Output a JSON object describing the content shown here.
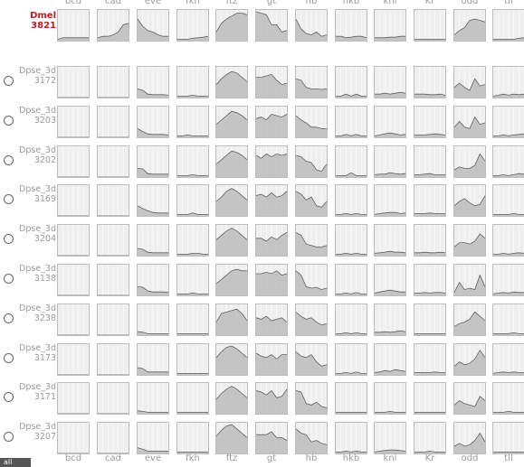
{
  "gene_labels": [
    "bcd",
    "cad",
    "eve",
    "fkh",
    "ftz",
    "gt",
    "hb",
    "hkb",
    "kni",
    "Kr",
    "odd",
    "tll"
  ],
  "reference": {
    "name_line1": "Dmel",
    "name_line2": "3821",
    "profiles": [
      [
        0.05,
        0.1,
        0.1,
        0.1,
        0.1,
        0.1,
        0.1
      ],
      [
        0.1,
        0.15,
        0.15,
        0.2,
        0.3,
        0.55,
        0.6
      ],
      [
        0.75,
        0.5,
        0.35,
        0.3,
        0.2,
        0.15,
        0.15
      ],
      [
        0.05,
        0.05,
        0.05,
        0.08,
        0.1,
        0.12,
        0.15
      ],
      [
        0.3,
        0.6,
        0.75,
        0.85,
        0.95,
        0.95,
        0.9
      ],
      [
        1.0,
        0.95,
        0.9,
        0.55,
        0.55,
        0.3,
        0.35
      ],
      [
        0.75,
        0.4,
        0.25,
        0.2,
        0.3,
        0.15,
        0.2
      ],
      [
        0.15,
        0.15,
        0.1,
        0.12,
        0.15,
        0.15,
        0.1
      ],
      [
        0.1,
        0.1,
        0.1,
        0.12,
        0.12,
        0.15,
        0.15
      ],
      [
        0.05,
        0.05,
        0.05,
        0.05,
        0.05,
        0.05,
        0.05
      ],
      [
        0.2,
        0.35,
        0.45,
        0.7,
        0.75,
        0.7,
        0.65
      ],
      [
        0.05,
        0.05,
        0.05,
        0.05,
        0.05,
        0.08,
        0.1
      ]
    ]
  },
  "rows": [
    {
      "name_line1": "Dpse_3d",
      "name_line2": "3172",
      "profiles": [
        [
          0,
          0,
          0,
          0,
          0,
          0,
          0
        ],
        [
          0,
          0,
          0,
          0,
          0,
          0,
          0
        ],
        [
          0.3,
          0.25,
          0.12,
          0.1,
          0.1,
          0.1,
          0.08
        ],
        [
          0.05,
          0.05,
          0.05,
          0.08,
          0.05,
          0.05,
          0.05
        ],
        [
          0.45,
          0.65,
          0.8,
          0.9,
          0.85,
          0.7,
          0.55
        ],
        [
          0.7,
          0.7,
          0.75,
          0.8,
          0.6,
          0.45,
          0.5
        ],
        [
          0.65,
          0.6,
          0.35,
          0.3,
          0.3,
          0.28,
          0.3
        ],
        [
          0.05,
          0.05,
          0.12,
          0.05,
          0.12,
          0.05,
          0.05
        ],
        [
          0.12,
          0.12,
          0.15,
          0.12,
          0.15,
          0.18,
          0.15
        ],
        [
          0.12,
          0.12,
          0.12,
          0.1,
          0.1,
          0.12,
          0.08
        ],
        [
          0.35,
          0.5,
          0.35,
          0.25,
          0.65,
          0.4,
          0.45
        ],
        [
          0.05,
          0.08,
          0.12,
          0.08,
          0.12,
          0.1,
          0.12
        ]
      ]
    },
    {
      "name_line1": "Dpse_3d",
      "name_line2": "3203",
      "profiles": [
        [
          0,
          0,
          0,
          0,
          0,
          0,
          0
        ],
        [
          0,
          0,
          0,
          0,
          0,
          0,
          0
        ],
        [
          0.3,
          0.2,
          0.12,
          0.1,
          0.1,
          0.1,
          0.08
        ],
        [
          0.05,
          0.05,
          0.08,
          0.05,
          0.05,
          0.05,
          0.05
        ],
        [
          0.45,
          0.6,
          0.75,
          0.9,
          0.85,
          0.75,
          0.6
        ],
        [
          0.65,
          0.7,
          0.6,
          0.8,
          0.75,
          0.7,
          0.8
        ],
        [
          0.75,
          0.6,
          0.5,
          0.35,
          0.35,
          0.3,
          0.3
        ],
        [
          0.05,
          0.05,
          0.1,
          0.05,
          0.1,
          0.05,
          0.05
        ],
        [
          0.05,
          0.08,
          0.12,
          0.15,
          0.12,
          0.08,
          0.1
        ],
        [
          0.08,
          0.08,
          0.08,
          0.1,
          0.12,
          0.1,
          0.08
        ],
        [
          0.35,
          0.55,
          0.35,
          0.3,
          0.7,
          0.45,
          0.5
        ],
        [
          0.05,
          0.05,
          0.08,
          0.05,
          0.08,
          0.1,
          0.12
        ]
      ]
    },
    {
      "name_line1": "Dpse_3d",
      "name_line2": "3202",
      "profiles": [
        [
          0,
          0,
          0,
          0,
          0,
          0,
          0
        ],
        [
          0,
          0,
          0,
          0,
          0,
          0,
          0
        ],
        [
          0.3,
          0.28,
          0.12,
          0.1,
          0.1,
          0.1,
          0.1
        ],
        [
          0.05,
          0.05,
          0.05,
          0.08,
          0.05,
          0.05,
          0.05
        ],
        [
          0.45,
          0.6,
          0.75,
          0.9,
          0.85,
          0.75,
          0.6
        ],
        [
          0.75,
          0.65,
          0.8,
          0.7,
          0.8,
          0.75,
          0.8
        ],
        [
          0.75,
          0.7,
          0.55,
          0.5,
          0.25,
          0.2,
          0.45
        ],
        [
          0.05,
          0.05,
          0.05,
          0.15,
          0.05,
          0.05,
          0.05
        ],
        [
          0.08,
          0.1,
          0.1,
          0.15,
          0.12,
          0.1,
          0.12
        ],
        [
          0.08,
          0.08,
          0.1,
          0.12,
          0.08,
          0.08,
          0.08
        ],
        [
          0.25,
          0.35,
          0.3,
          0.3,
          0.4,
          0.8,
          0.55
        ],
        [
          0.05,
          0.05,
          0.08,
          0.05,
          0.08,
          0.12,
          0.1
        ]
      ]
    },
    {
      "name_line1": "Dpse_3d",
      "name_line2": "3169",
      "profiles": [
        [
          0,
          0,
          0,
          0,
          0,
          0,
          0
        ],
        [
          0,
          0,
          0,
          0,
          0,
          0,
          0
        ],
        [
          0.35,
          0.25,
          0.18,
          0.12,
          0.1,
          0.1,
          0.1
        ],
        [
          0.05,
          0.05,
          0.05,
          0.1,
          0.05,
          0.05,
          0.05
        ],
        [
          0.5,
          0.65,
          0.85,
          0.95,
          0.85,
          0.7,
          0.55
        ],
        [
          0.7,
          0.75,
          0.65,
          0.8,
          0.65,
          0.7,
          0.85
        ],
        [
          0.85,
          0.75,
          0.55,
          0.65,
          0.35,
          0.3,
          0.5
        ],
        [
          0.05,
          0.05,
          0.08,
          0.05,
          0.08,
          0.05,
          0.05
        ],
        [
          0.05,
          0.08,
          0.1,
          0.12,
          0.12,
          0.08,
          0.1
        ],
        [
          0.08,
          0.08,
          0.08,
          0.1,
          0.08,
          0.08,
          0.08
        ],
        [
          0.35,
          0.5,
          0.6,
          0.45,
          0.35,
          0.4,
          0.7
        ],
        [
          0.05,
          0.05,
          0.05,
          0.05,
          0.08,
          0.05,
          0.05
        ]
      ]
    },
    {
      "name_line1": "Dpse_3d",
      "name_line2": "3204",
      "profiles": [
        [
          0,
          0,
          0,
          0,
          0,
          0,
          0
        ],
        [
          0,
          0,
          0,
          0,
          0,
          0,
          0
        ],
        [
          0.25,
          0.22,
          0.12,
          0.1,
          0.1,
          0.1,
          0.1
        ],
        [
          0.05,
          0.05,
          0.05,
          0.08,
          0.08,
          0.05,
          0.05
        ],
        [
          0.55,
          0.7,
          0.85,
          0.95,
          0.85,
          0.7,
          0.55
        ],
        [
          0.6,
          0.6,
          0.5,
          0.65,
          0.55,
          0.7,
          0.8
        ],
        [
          0.8,
          0.7,
          0.4,
          0.35,
          0.3,
          0.3,
          0.35
        ],
        [
          0.05,
          0.05,
          0.08,
          0.05,
          0.08,
          0.05,
          0.05
        ],
        [
          0.08,
          0.1,
          0.12,
          0.15,
          0.12,
          0.12,
          0.1
        ],
        [
          0.1,
          0.1,
          0.12,
          0.1,
          0.1,
          0.12,
          0.1
        ],
        [
          0.3,
          0.45,
          0.45,
          0.4,
          0.5,
          0.75,
          0.6
        ],
        [
          0.05,
          0.05,
          0.08,
          0.05,
          0.08,
          0.1,
          0.08
        ]
      ]
    },
    {
      "name_line1": "Dpse_3d",
      "name_line2": "3138",
      "profiles": [
        [
          0,
          0,
          0,
          0,
          0,
          0,
          0
        ],
        [
          0,
          0,
          0,
          0,
          0,
          0,
          0
        ],
        [
          0.3,
          0.28,
          0.15,
          0.12,
          0.12,
          0.12,
          0.1
        ],
        [
          0.05,
          0.05,
          0.05,
          0.08,
          0.05,
          0.05,
          0.05
        ],
        [
          0.4,
          0.55,
          0.7,
          0.85,
          0.9,
          0.85,
          0.85
        ],
        [
          0.75,
          0.75,
          0.8,
          0.75,
          0.85,
          0.7,
          0.75
        ],
        [
          0.85,
          0.7,
          0.3,
          0.25,
          0.28,
          0.2,
          0.25
        ],
        [
          0.05,
          0.05,
          0.08,
          0.05,
          0.1,
          0.05,
          0.05
        ],
        [
          0.08,
          0.12,
          0.15,
          0.18,
          0.15,
          0.12,
          0.12
        ],
        [
          0.08,
          0.08,
          0.1,
          0.08,
          0.1,
          0.1,
          0.08
        ],
        [
          0.1,
          0.45,
          0.2,
          0.25,
          0.2,
          0.7,
          0.3
        ],
        [
          0.05,
          0.08,
          0.1,
          0.08,
          0.12,
          0.1,
          0.1
        ]
      ]
    },
    {
      "name_line1": "Dpse_3d",
      "name_line2": "3238",
      "profiles": [
        [
          0,
          0,
          0,
          0,
          0,
          0,
          0
        ],
        [
          0,
          0,
          0,
          0,
          0,
          0,
          0
        ],
        [
          0.12,
          0.1,
          0.05,
          0.05,
          0.05,
          0.05,
          0.05
        ],
        [
          0.05,
          0.05,
          0.05,
          0.05,
          0.05,
          0.05,
          0.05
        ],
        [
          0.45,
          0.75,
          0.8,
          0.85,
          0.9,
          0.75,
          0.5
        ],
        [
          0.6,
          0.55,
          0.65,
          0.5,
          0.55,
          0.6,
          0.45
        ],
        [
          0.8,
          0.65,
          0.55,
          0.6,
          0.45,
          0.35,
          0.4
        ],
        [
          0.05,
          0.05,
          0.08,
          0.05,
          0.08,
          0.05,
          0.05
        ],
        [
          0.1,
          0.1,
          0.12,
          0.1,
          0.12,
          0.15,
          0.12
        ],
        [
          0.05,
          0.05,
          0.05,
          0.05,
          0.05,
          0.05,
          0.05
        ],
        [
          0.3,
          0.4,
          0.45,
          0.55,
          0.8,
          0.65,
          0.5
        ],
        [
          0.05,
          0.05,
          0.05,
          0.05,
          0.08,
          0.05,
          0.05
        ]
      ]
    },
    {
      "name_line1": "Dpse_3d",
      "name_line2": "3173",
      "profiles": [
        [
          0,
          0,
          0,
          0,
          0,
          0,
          0
        ],
        [
          0,
          0,
          0,
          0,
          0,
          0,
          0
        ],
        [
          0.25,
          0.22,
          0.1,
          0.1,
          0.1,
          0.1,
          0.1
        ],
        [
          0.05,
          0.05,
          0.05,
          0.05,
          0.05,
          0.05,
          0.05
        ],
        [
          0.6,
          0.8,
          0.95,
          1.0,
          0.9,
          0.75,
          0.6
        ],
        [
          0.75,
          0.65,
          0.6,
          0.7,
          0.55,
          0.7,
          0.7
        ],
        [
          0.8,
          0.65,
          0.6,
          0.7,
          0.45,
          0.3,
          0.35
        ],
        [
          0.05,
          0.05,
          0.08,
          0.05,
          0.1,
          0.05,
          0.05
        ],
        [
          0.08,
          0.1,
          0.15,
          0.12,
          0.18,
          0.15,
          0.12
        ],
        [
          0.08,
          0.08,
          0.08,
          0.08,
          0.1,
          0.08,
          0.08
        ],
        [
          0.3,
          0.45,
          0.35,
          0.4,
          0.55,
          0.85,
          0.6
        ],
        [
          0.05,
          0.08,
          0.1,
          0.08,
          0.1,
          0.08,
          0.08
        ]
      ]
    },
    {
      "name_line1": "Dpse_3d",
      "name_line2": "3171",
      "profiles": [
        [
          0,
          0,
          0,
          0,
          0,
          0,
          0
        ],
        [
          0,
          0,
          0,
          0,
          0,
          0,
          0
        ],
        [
          0.1,
          0.08,
          0.05,
          0.05,
          0.05,
          0.05,
          0.05
        ],
        [
          0.05,
          0.05,
          0.05,
          0.05,
          0.05,
          0.05,
          0.05
        ],
        [
          0.5,
          0.7,
          0.85,
          0.95,
          0.85,
          0.7,
          0.55
        ],
        [
          0.8,
          0.75,
          0.65,
          0.8,
          0.55,
          0.6,
          0.85
        ],
        [
          0.8,
          0.75,
          0.35,
          0.3,
          0.4,
          0.25,
          0.2
        ],
        [
          0.05,
          0.05,
          0.05,
          0.05,
          0.05,
          0.05,
          0.05
        ],
        [
          0.05,
          0.05,
          0.05,
          0.08,
          0.05,
          0.05,
          0.05
        ],
        [
          0.05,
          0.05,
          0.05,
          0.05,
          0.05,
          0.05,
          0.05
        ],
        [
          0.3,
          0.45,
          0.35,
          0.3,
          0.25,
          0.6,
          0.45
        ],
        [
          0.05,
          0.05,
          0.05,
          0.08,
          0.05,
          0.05,
          0.05
        ]
      ]
    },
    {
      "name_line1": "Dpse_3d",
      "name_line2": "3207",
      "profiles": [
        [
          0,
          0,
          0,
          0,
          0,
          0,
          0
        ],
        [
          0,
          0,
          0,
          0,
          0,
          0,
          0
        ],
        [
          0.2,
          0.15,
          0.08,
          0.08,
          0.08,
          0.08,
          0.08
        ],
        [
          0.05,
          0.05,
          0.05,
          0.05,
          0.05,
          0.05,
          0.05
        ],
        [
          0.6,
          0.8,
          0.95,
          1.0,
          0.85,
          0.7,
          0.55
        ],
        [
          0.65,
          0.65,
          0.65,
          0.75,
          0.55,
          0.55,
          0.45
        ],
        [
          0.85,
          0.7,
          0.65,
          0.4,
          0.45,
          0.35,
          0.3
        ],
        [
          0.05,
          0.05,
          0.08,
          0.05,
          0.08,
          0.05,
          0.05
        ],
        [
          0.05,
          0.08,
          0.1,
          0.12,
          0.12,
          0.1,
          0.08
        ],
        [
          0.05,
          0.05,
          0.05,
          0.08,
          0.05,
          0.05,
          0.05
        ],
        [
          0.25,
          0.35,
          0.25,
          0.3,
          0.45,
          0.7,
          0.4
        ],
        [
          0.05,
          0.05,
          0.05,
          0.05,
          0.05,
          0.05,
          0.05
        ]
      ]
    }
  ],
  "colors": {
    "cell_bg": "#efefef",
    "cell_border": "#bdbdbd",
    "fill": "#bcbcbc",
    "stroke": "#606060",
    "grid": "#ffffff",
    "ref_label": "#b52020",
    "label": "#9a9a9a"
  },
  "all_button_label": "all"
}
